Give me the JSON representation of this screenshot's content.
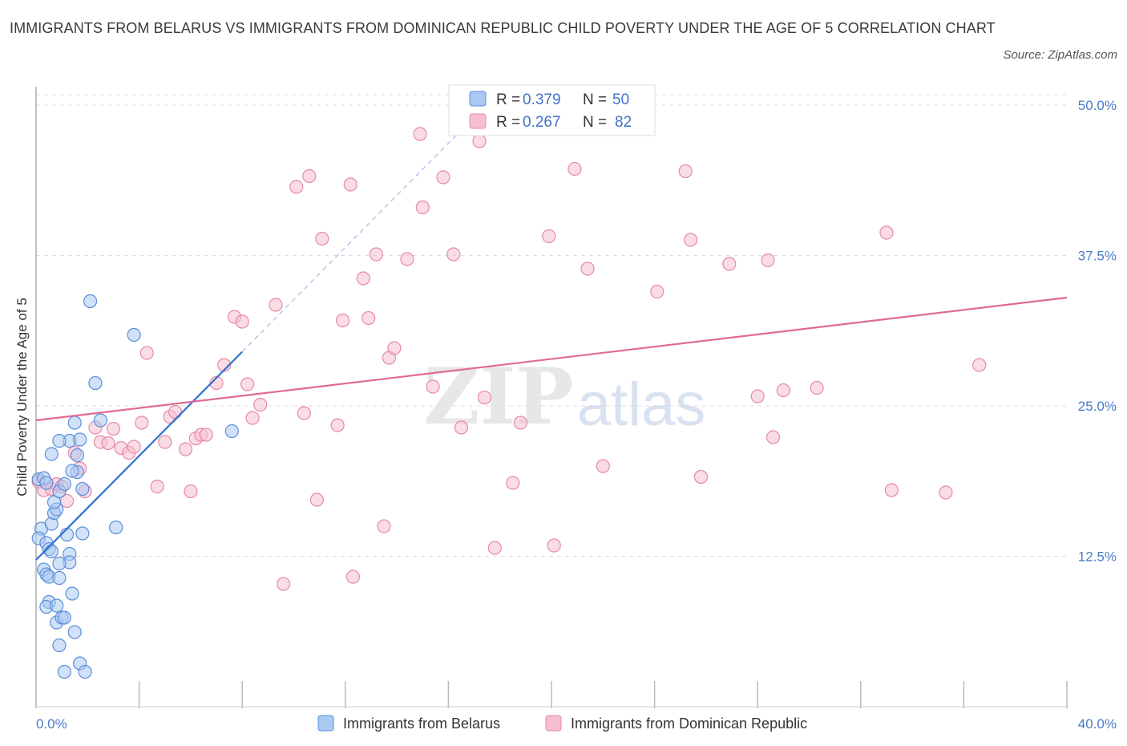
{
  "title": "IMMIGRANTS FROM BELARUS VS IMMIGRANTS FROM DOMINICAN REPUBLIC CHILD POVERTY UNDER THE AGE OF 5 CORRELATION CHART",
  "source": "Source: ZipAtlas.com",
  "watermark": {
    "zip": "ZIP",
    "atlas": "atlas"
  },
  "colors": {
    "belarus_fill": "#a9c8f2",
    "belarus_stroke": "#5b8fd8",
    "belarus_line": "#2f6fce",
    "dr_fill": "#f6bfd0",
    "dr_stroke": "#e58aa8",
    "dr_line": "#e06a95",
    "grid": "#dddddd",
    "axis_text": "#4a7ac9"
  },
  "chart_data": {
    "type": "scatter",
    "xlabel": "",
    "ylabel": "Child Poverty Under the Age of 5",
    "xlim": [
      0,
      40
    ],
    "ylim": [
      0,
      50
    ],
    "x_tick_labels": {
      "left": "0.0%",
      "right": "40.0%"
    },
    "y_ticks": [
      {
        "value": 12.5,
        "label": "12.5%"
      },
      {
        "value": 25,
        "label": "25.0%"
      },
      {
        "value": 37.5,
        "label": "37.5%"
      },
      {
        "value": 50,
        "label": "50.0%"
      }
    ],
    "legend_stats": [
      {
        "r_label": "R =",
        "r": "0.379",
        "n_label": "N =",
        "n": "50"
      },
      {
        "r_label": "R =",
        "r": "0.267",
        "n_label": "N =",
        "n": "82"
      }
    ],
    "series": [
      {
        "name": "Immigrants from Belarus",
        "trend": {
          "x0": 0,
          "y0": 12.2,
          "x1": 8.0,
          "y1": 29.5,
          "dash_to_x": 17.0,
          "dash_to_y": 49.0
        },
        "points": [
          [
            0.1,
            18.9
          ],
          [
            0.3,
            19.0
          ],
          [
            0.4,
            18.6
          ],
          [
            0.2,
            14.8
          ],
          [
            0.1,
            14.0
          ],
          [
            0.4,
            13.6
          ],
          [
            0.5,
            13.1
          ],
          [
            0.6,
            12.9
          ],
          [
            0.3,
            11.4
          ],
          [
            0.4,
            11.0
          ],
          [
            0.5,
            10.8
          ],
          [
            0.9,
            10.7
          ],
          [
            0.5,
            8.7
          ],
          [
            0.4,
            8.3
          ],
          [
            0.8,
            8.4
          ],
          [
            0.8,
            7.0
          ],
          [
            1.0,
            7.4
          ],
          [
            1.1,
            7.4
          ],
          [
            1.5,
            6.2
          ],
          [
            0.9,
            5.1
          ],
          [
            1.1,
            2.9
          ],
          [
            1.7,
            3.6
          ],
          [
            1.9,
            2.9
          ],
          [
            0.6,
            15.2
          ],
          [
            0.7,
            16.1
          ],
          [
            0.8,
            16.4
          ],
          [
            0.7,
            17.0
          ],
          [
            0.9,
            17.9
          ],
          [
            1.2,
            14.3
          ],
          [
            1.3,
            12.7
          ],
          [
            1.3,
            12.0
          ],
          [
            0.9,
            11.9
          ],
          [
            1.8,
            14.4
          ],
          [
            3.1,
            14.9
          ],
          [
            1.4,
            9.4
          ],
          [
            1.6,
            20.9
          ],
          [
            0.6,
            21.0
          ],
          [
            1.3,
            22.1
          ],
          [
            1.7,
            22.2
          ],
          [
            0.9,
            22.1
          ],
          [
            1.5,
            23.6
          ],
          [
            2.5,
            23.8
          ],
          [
            1.6,
            19.5
          ],
          [
            1.8,
            18.1
          ],
          [
            1.4,
            19.6
          ],
          [
            2.1,
            33.7
          ],
          [
            3.8,
            30.9
          ],
          [
            2.3,
            26.9
          ],
          [
            7.6,
            22.9
          ],
          [
            1.1,
            18.5
          ]
        ]
      },
      {
        "name": "Immigrants from Dominican Republic",
        "trend": {
          "x0": 0,
          "y0": 23.8,
          "x1": 40.0,
          "y1": 34.0
        },
        "points": [
          [
            0.1,
            18.7
          ],
          [
            0.3,
            18.0
          ],
          [
            0.6,
            18.1
          ],
          [
            0.8,
            18.5
          ],
          [
            1.0,
            18.3
          ],
          [
            1.2,
            17.1
          ],
          [
            1.5,
            21.1
          ],
          [
            1.7,
            19.8
          ],
          [
            1.9,
            17.9
          ],
          [
            2.3,
            23.2
          ],
          [
            2.5,
            22.0
          ],
          [
            2.8,
            21.9
          ],
          [
            3.0,
            23.1
          ],
          [
            3.3,
            21.5
          ],
          [
            3.6,
            21.1
          ],
          [
            3.8,
            21.6
          ],
          [
            4.1,
            23.6
          ],
          [
            4.3,
            29.4
          ],
          [
            4.7,
            18.3
          ],
          [
            5.0,
            22.0
          ],
          [
            5.2,
            24.1
          ],
          [
            5.4,
            24.5
          ],
          [
            5.8,
            21.4
          ],
          [
            6.0,
            17.9
          ],
          [
            6.2,
            22.3
          ],
          [
            6.4,
            22.6
          ],
          [
            6.6,
            22.6
          ],
          [
            7.0,
            26.9
          ],
          [
            7.3,
            28.4
          ],
          [
            7.7,
            32.4
          ],
          [
            8.0,
            32.0
          ],
          [
            8.2,
            26.8
          ],
          [
            8.4,
            24.0
          ],
          [
            8.7,
            25.1
          ],
          [
            9.3,
            33.4
          ],
          [
            9.6,
            10.2
          ],
          [
            10.1,
            43.2
          ],
          [
            10.4,
            24.4
          ],
          [
            10.6,
            44.1
          ],
          [
            10.9,
            17.2
          ],
          [
            11.1,
            38.9
          ],
          [
            11.7,
            23.4
          ],
          [
            11.9,
            32.1
          ],
          [
            12.2,
            43.4
          ],
          [
            12.3,
            10.8
          ],
          [
            12.7,
            35.6
          ],
          [
            12.9,
            32.3
          ],
          [
            13.2,
            37.6
          ],
          [
            13.5,
            15.0
          ],
          [
            13.7,
            29.0
          ],
          [
            13.9,
            29.8
          ],
          [
            14.4,
            37.2
          ],
          [
            14.9,
            47.6
          ],
          [
            15.0,
            41.5
          ],
          [
            15.4,
            26.6
          ],
          [
            15.8,
            44.0
          ],
          [
            16.2,
            37.6
          ],
          [
            16.5,
            23.2
          ],
          [
            17.2,
            47.0
          ],
          [
            17.4,
            25.7
          ],
          [
            17.8,
            13.2
          ],
          [
            18.5,
            18.6
          ],
          [
            18.8,
            23.6
          ],
          [
            19.9,
            39.1
          ],
          [
            20.1,
            13.4
          ],
          [
            20.9,
            44.7
          ],
          [
            21.4,
            36.4
          ],
          [
            22.0,
            20.0
          ],
          [
            24.1,
            34.5
          ],
          [
            25.2,
            44.5
          ],
          [
            25.8,
            19.1
          ],
          [
            25.4,
            38.8
          ],
          [
            26.9,
            36.8
          ],
          [
            28.0,
            25.8
          ],
          [
            28.4,
            37.1
          ],
          [
            28.6,
            22.4
          ],
          [
            29.0,
            26.3
          ],
          [
            30.3,
            26.5
          ],
          [
            33.2,
            18.0
          ],
          [
            33.0,
            39.4
          ],
          [
            35.3,
            17.8
          ],
          [
            36.6,
            28.4
          ]
        ]
      }
    ]
  }
}
